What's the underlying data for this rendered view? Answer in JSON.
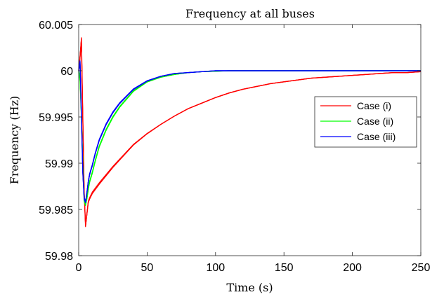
{
  "chart_data": {
    "type": "line",
    "title": "Frequency at all buses",
    "xlabel": "Time (s)",
    "ylabel": "Frequency (Hz)",
    "xlim": [
      0,
      250
    ],
    "ylim": [
      59.98,
      60.005
    ],
    "x_ticks": [
      "0",
      "50",
      "100",
      "150",
      "200",
      "250"
    ],
    "y_ticks": [
      "59.98",
      "59.985",
      "59.99",
      "59.995",
      "60",
      "60.005"
    ],
    "grid": false,
    "legend_position": "right",
    "series": [
      {
        "name": "Case (i)",
        "color": "#ff0000",
        "x": [
          0,
          1,
          2,
          3,
          4,
          5,
          6,
          7,
          8,
          9,
          10,
          12,
          15,
          20,
          25,
          30,
          40,
          50,
          60,
          70,
          80,
          90,
          100,
          110,
          120,
          130,
          140,
          150,
          160,
          170,
          180,
          190,
          200,
          210,
          220,
          230,
          240,
          250
        ],
        "y": [
          60.0,
          60.0015,
          60.0035,
          59.995,
          59.987,
          59.9832,
          59.9845,
          59.9858,
          59.9862,
          59.9865,
          59.9868,
          59.9872,
          59.9878,
          59.9887,
          59.9896,
          59.9904,
          59.992,
          59.9932,
          59.9942,
          59.9951,
          59.9959,
          59.9965,
          59.9971,
          59.9976,
          59.998,
          59.9983,
          59.9986,
          59.9988,
          59.999,
          59.9992,
          59.9993,
          59.9994,
          59.9995,
          59.9996,
          59.9997,
          59.9998,
          59.9998,
          59.9999
        ]
      },
      {
        "name": "Case (ii)",
        "color": "#00ff00",
        "x": [
          0,
          1,
          2,
          3,
          4,
          5,
          6,
          7,
          8,
          10,
          12,
          15,
          20,
          25,
          30,
          40,
          50,
          60,
          70,
          80,
          90,
          100,
          110,
          120,
          130,
          140,
          150,
          200,
          250
        ],
        "y": [
          60.0,
          59.999,
          59.995,
          59.99,
          59.986,
          59.9855,
          59.9862,
          59.9872,
          59.988,
          59.989,
          59.9902,
          59.9918,
          59.9936,
          59.995,
          59.9961,
          59.9978,
          59.9988,
          59.9993,
          59.9996,
          59.9998,
          59.9999,
          59.99995,
          60.0,
          60.0,
          60.0,
          60.0,
          60.0,
          60.0,
          60.0
        ]
      },
      {
        "name": "Case (iii)",
        "color": "#0000ff",
        "x": [
          0,
          1,
          2,
          3,
          4,
          5,
          6,
          7,
          8,
          10,
          12,
          15,
          20,
          25,
          30,
          40,
          50,
          60,
          70,
          80,
          90,
          100,
          110,
          120,
          130,
          140,
          150,
          200,
          250
        ],
        "y": [
          60.0,
          60.001,
          59.995,
          59.989,
          59.9862,
          59.9858,
          59.9868,
          59.988,
          59.9888,
          59.9898,
          59.991,
          59.9925,
          59.9942,
          59.9955,
          59.9965,
          59.998,
          59.9989,
          59.9994,
          59.9997,
          59.9998,
          59.9999,
          60.0,
          60.0,
          60.0,
          60.0,
          60.0,
          60.0,
          60.0,
          60.0
        ]
      }
    ]
  }
}
